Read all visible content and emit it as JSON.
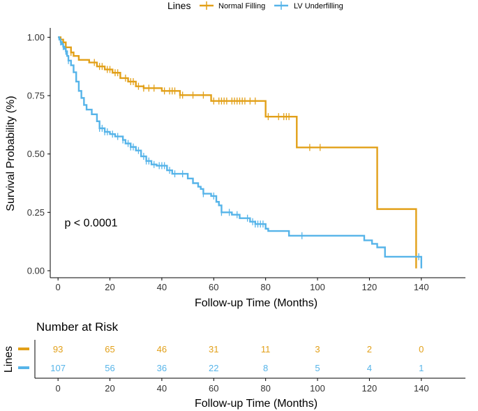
{
  "chart_data": {
    "type": "line",
    "legend": {
      "title": "Lines",
      "position": "top",
      "entries": [
        "Normal Filling",
        "LV Underfilling"
      ]
    },
    "xlabel": "Follow-up Time (Months)",
    "ylabel": "Survival Probability (%)",
    "xlim": [
      -3,
      157
    ],
    "ylim": [
      -0.03,
      1.04
    ],
    "xticks": [
      0,
      20,
      40,
      60,
      80,
      100,
      120,
      140
    ],
    "xtick_labels": [
      "0",
      "20",
      "40",
      "60",
      "80",
      "100",
      "120",
      "140"
    ],
    "yticks": [
      0,
      0.25,
      0.5,
      0.75,
      1
    ],
    "ytick_labels": [
      "0.00",
      "0.25",
      "0.50",
      "0.75",
      "1.00"
    ],
    "grid": false,
    "annotation": "p < 0.0001",
    "annotation_pos": {
      "x": 2.5,
      "y": 0.19
    },
    "series": [
      {
        "name": "Normal Filling",
        "color": "#E2A019",
        "steps": [
          [
            0,
            1.0
          ],
          [
            1,
            0.99
          ],
          [
            2,
            0.978
          ],
          [
            3,
            0.957
          ],
          [
            5,
            0.935
          ],
          [
            6,
            0.92
          ],
          [
            8,
            0.903
          ],
          [
            12,
            0.892
          ],
          [
            15,
            0.875
          ],
          [
            18,
            0.862
          ],
          [
            21,
            0.848
          ],
          [
            24,
            0.825
          ],
          [
            27,
            0.81
          ],
          [
            30,
            0.79
          ],
          [
            33,
            0.782
          ],
          [
            40,
            0.77
          ],
          [
            47,
            0.752
          ],
          [
            59,
            0.727
          ],
          [
            80,
            0.66
          ],
          [
            92,
            0.528
          ],
          [
            123,
            0.264
          ],
          [
            138,
            0.01
          ]
        ],
        "end_x": 138,
        "censor_x": [
          3,
          5,
          14,
          16,
          17,
          19,
          20,
          22,
          23,
          26,
          28,
          29,
          31,
          33,
          35,
          37,
          41,
          43,
          44,
          45,
          47,
          48,
          52,
          56,
          60,
          62,
          63,
          64,
          65,
          67,
          68,
          69,
          70,
          71,
          72,
          74,
          76,
          81,
          85,
          87,
          88,
          89,
          97,
          101
        ]
      },
      {
        "name": "LV Underfilling",
        "color": "#56B4E9",
        "steps": [
          [
            0,
            1.0
          ],
          [
            0.5,
            0.99
          ],
          [
            1,
            0.98
          ],
          [
            1.5,
            0.97
          ],
          [
            2,
            0.96
          ],
          [
            2.5,
            0.95
          ],
          [
            3,
            0.94
          ],
          [
            3.5,
            0.92
          ],
          [
            4,
            0.9
          ],
          [
            5,
            0.88
          ],
          [
            6,
            0.85
          ],
          [
            7,
            0.81
          ],
          [
            8,
            0.77
          ],
          [
            9,
            0.74
          ],
          [
            10,
            0.71
          ],
          [
            11,
            0.69
          ],
          [
            13,
            0.67
          ],
          [
            15,
            0.64
          ],
          [
            16,
            0.61
          ],
          [
            18,
            0.595
          ],
          [
            20,
            0.585
          ],
          [
            22,
            0.575
          ],
          [
            25,
            0.56
          ],
          [
            26,
            0.545
          ],
          [
            28,
            0.53
          ],
          [
            30,
            0.515
          ],
          [
            32,
            0.49
          ],
          [
            34,
            0.47
          ],
          [
            36,
            0.455
          ],
          [
            38,
            0.45
          ],
          [
            42,
            0.43
          ],
          [
            44,
            0.415
          ],
          [
            50,
            0.395
          ],
          [
            52,
            0.375
          ],
          [
            54,
            0.36
          ],
          [
            55,
            0.35
          ],
          [
            56,
            0.33
          ],
          [
            59,
            0.32
          ],
          [
            61,
            0.295
          ],
          [
            62,
            0.28
          ],
          [
            63,
            0.25
          ],
          [
            67,
            0.24
          ],
          [
            70,
            0.225
          ],
          [
            74,
            0.21
          ],
          [
            76,
            0.2
          ],
          [
            80,
            0.18
          ],
          [
            81,
            0.17
          ],
          [
            89,
            0.15
          ],
          [
            118,
            0.13
          ],
          [
            121,
            0.115
          ],
          [
            123,
            0.1
          ],
          [
            126,
            0.06
          ],
          [
            140,
            0.01
          ]
        ],
        "end_x": 140,
        "censor_x": [
          1,
          2,
          3,
          4,
          16,
          17,
          18,
          19,
          21,
          23,
          25,
          27,
          28,
          29,
          31,
          33,
          34,
          35,
          37,
          39,
          40,
          41,
          43,
          45,
          48,
          56,
          60,
          63,
          66,
          69,
          73,
          75,
          76,
          77,
          78,
          79,
          94,
          139
        ]
      }
    ],
    "risk_table": {
      "title": "Number at Risk",
      "ylabel": "Lines",
      "xlabel": "Follow-up Time (Months)",
      "times": [
        0,
        20,
        40,
        60,
        80,
        100,
        120,
        140
      ],
      "rows": [
        {
          "name": "Normal Filling",
          "color": "#E2A019",
          "values": [
            "93",
            "65",
            "46",
            "31",
            "11",
            "3",
            "2",
            "0"
          ]
        },
        {
          "name": "LV Underfilling",
          "color": "#56B4E9",
          "values": [
            "107",
            "56",
            "36",
            "22",
            "8",
            "5",
            "4",
            "1"
          ]
        }
      ]
    }
  }
}
